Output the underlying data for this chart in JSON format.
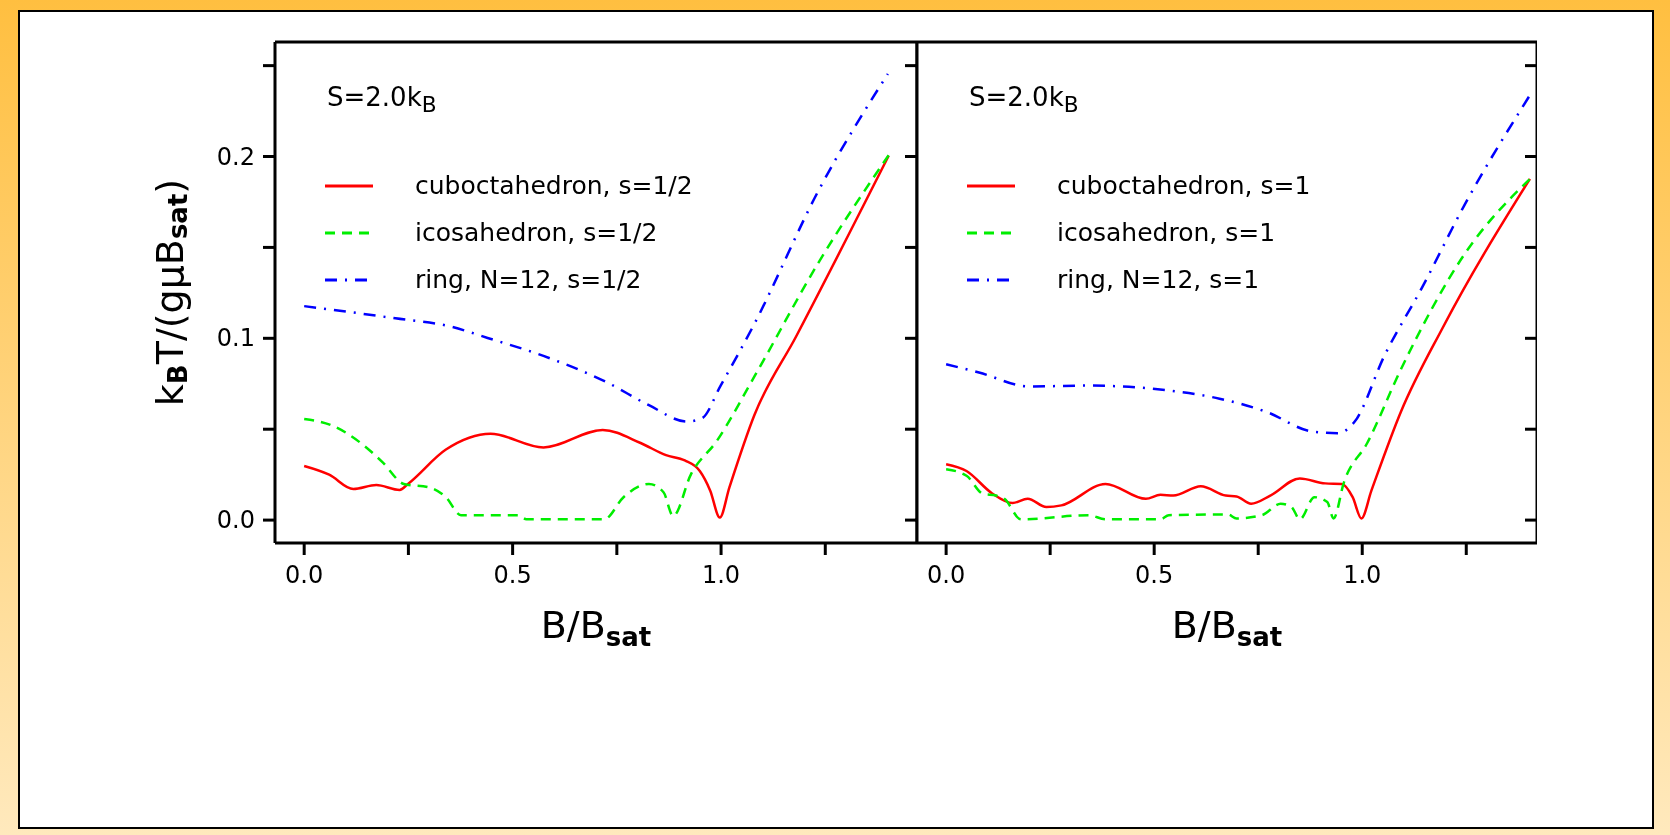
{
  "chart_data": [
    {
      "type": "line",
      "xlabel": "B/B$_{sat}$",
      "ylabel": "k$_{B}$T/(gμB$_{sat}$)",
      "annotations": [
        "S=2.0k$_{B}$"
      ],
      "legend": "top left",
      "grid": false,
      "xlim": [
        -0.07,
        1.47
      ],
      "ylim": [
        -0.0126,
        0.263
      ],
      "xticks": [
        {
          "value": 0,
          "label": "0.0"
        },
        {
          "value": 0.25,
          "label": null
        },
        0.5,
        {
          "value": 0.75,
          "label": null
        },
        {
          "value": 1,
          "label": "1.0"
        },
        {
          "value": 1.25,
          "label": null
        }
      ],
      "yticks": [
        {
          "value": 0,
          "label": "0.0"
        },
        {
          "value": 0.05,
          "label": null
        },
        0.1,
        {
          "value": 0.15,
          "label": null
        },
        0.2,
        {
          "value": 0.25,
          "label": null
        }
      ],
      "series": [
        {
          "name": "cuboctahedron, s=1/2",
          "color": "#ff0000",
          "line_style": "solid",
          "x": [
            0,
            0.06,
            0.118,
            0.173,
            0.229,
            0.249,
            0.34,
            0.447,
            0.574,
            0.716,
            0.807,
            0.868,
            0.913,
            0.949,
            0.974,
            0.997,
            1.02,
            1.08,
            1.18,
            1.402
          ],
          "values": [
            0.0298,
            0.025,
            0.0171,
            0.0193,
            0.0166,
            0.0199,
            0.0388,
            0.0475,
            0.04,
            0.0496,
            0.0424,
            0.0357,
            0.0328,
            0.027,
            0.0162,
            0.0014,
            0.018,
            0.0578,
            0.101,
            0.2004
          ]
        },
        {
          "name": "icosahedron, s=1/2",
          "color": "#00ee00",
          "line_style": "dashed",
          "x": [
            0,
            0.067,
            0.138,
            0.189,
            0.239,
            0.3,
            0.34,
            0.376,
            0.513,
            0.533,
            0.72,
            0.766,
            0.827,
            0.862,
            0.885,
            0.928,
            0.989,
            1.08,
            1.232,
            1.402
          ],
          "values": [
            0.0556,
            0.052,
            0.042,
            0.0316,
            0.0199,
            0.018,
            0.0126,
            0.0027,
            0.0027,
            0.0005,
            0.0005,
            0.0126,
            0.0199,
            0.0153,
            0.0022,
            0.0253,
            0.0433,
            0.079,
            0.141,
            0.2007
          ]
        },
        {
          "name": "ring, N=12, s=1/2",
          "color": "#0000ff",
          "line_style": "dotted",
          "x": [
            0,
            0.219,
            0.351,
            0.44,
            0.574,
            0.726,
            0.827,
            0.918,
            0.954,
            0.999,
            1.08,
            1.232,
            1.4
          ],
          "values": [
            0.1177,
            0.111,
            0.1065,
            0.1002,
            0.0903,
            0.0758,
            0.0632,
            0.0542,
            0.056,
            0.074,
            0.108,
            0.1805,
            0.2455
          ]
        }
      ]
    },
    {
      "type": "line",
      "xlabel": "B/B$_{sat}$",
      "annotations": [
        "S=2.0k$_{B}$"
      ],
      "legend": "top left",
      "grid": false,
      "tick_labels": "x",
      "xlim": [
        -0.07,
        1.42
      ],
      "ylim": [
        -0.0126,
        0.263
      ],
      "xticks": [
        {
          "value": 0,
          "label": "0.0"
        },
        {
          "value": 0.25,
          "label": null
        },
        0.5,
        {
          "value": 0.75,
          "label": null
        },
        {
          "value": 1,
          "label": "1.0"
        },
        {
          "value": 1.25,
          "label": null
        }
      ],
      "yticks": [
        {
          "value": 0,
          "label": null
        },
        {
          "value": 0.05,
          "label": null
        },
        {
          "value": 0.1,
          "label": null
        },
        {
          "value": 0.15,
          "label": null
        },
        {
          "value": 0.2,
          "label": null
        },
        {
          "value": 0.25,
          "label": null
        }
      ],
      "series": [
        {
          "name": "cuboctahedron, s=1",
          "color": "#ff0000",
          "line_style": "solid",
          "x": [
            0,
            0.049,
            0.11,
            0.16,
            0.196,
            0.241,
            0.277,
            0.383,
            0.48,
            0.515,
            0.546,
            0.612,
            0.672,
            0.698,
            0.733,
            0.779,
            0.85,
            0.911,
            0.951,
            0.977,
            0.998,
            1.022,
            1.093,
            1.195,
            1.403
          ],
          "values": [
            0.0307,
            0.027,
            0.0148,
            0.0094,
            0.0117,
            0.0072,
            0.0081,
            0.0199,
            0.0117,
            0.0139,
            0.0135,
            0.0186,
            0.0135,
            0.013,
            0.009,
            0.0135,
            0.0229,
            0.0202,
            0.0199,
            0.0126,
            0.0009,
            0.0162,
            0.0596,
            0.1065,
            0.1877
          ]
        },
        {
          "name": "icosahedron, s=1",
          "color": "#00ee00",
          "line_style": "dashed",
          "x": [
            0,
            0.049,
            0.089,
            0.12,
            0.14,
            0.18,
            0.343,
            0.383,
            0.515,
            0.535,
            0.677,
            0.698,
            0.759,
            0.804,
            0.83,
            0.85,
            0.885,
            0.916,
            0.931,
            0.956,
            1.012,
            1.093,
            1.245,
            1.403
          ],
          "values": [
            0.028,
            0.0244,
            0.0144,
            0.0135,
            0.0117,
            0.0004,
            0.0027,
            0.0004,
            0.0004,
            0.0027,
            0.0031,
            0.0009,
            0.0027,
            0.009,
            0.0072,
            0.0004,
            0.0126,
            0.0099,
            0.0009,
            0.0208,
            0.0424,
            0.083,
            0.146,
            0.1877
          ]
        },
        {
          "name": "ring, N=12, s=1",
          "color": "#0000ff",
          "line_style": "dotted",
          "x": [
            0,
            0.079,
            0.2,
            0.333,
            0.424,
            0.535,
            0.657,
            0.769,
            0.88,
            0.941,
            0.982,
            1.053,
            1.144,
            1.245,
            1.403
          ],
          "values": [
            0.0857,
            0.0812,
            0.0735,
            0.074,
            0.0735,
            0.0713,
            0.0668,
            0.0596,
            0.0487,
            0.0478,
            0.0542,
            0.0903,
            0.128,
            0.173,
            0.2338
          ]
        }
      ]
    }
  ]
}
